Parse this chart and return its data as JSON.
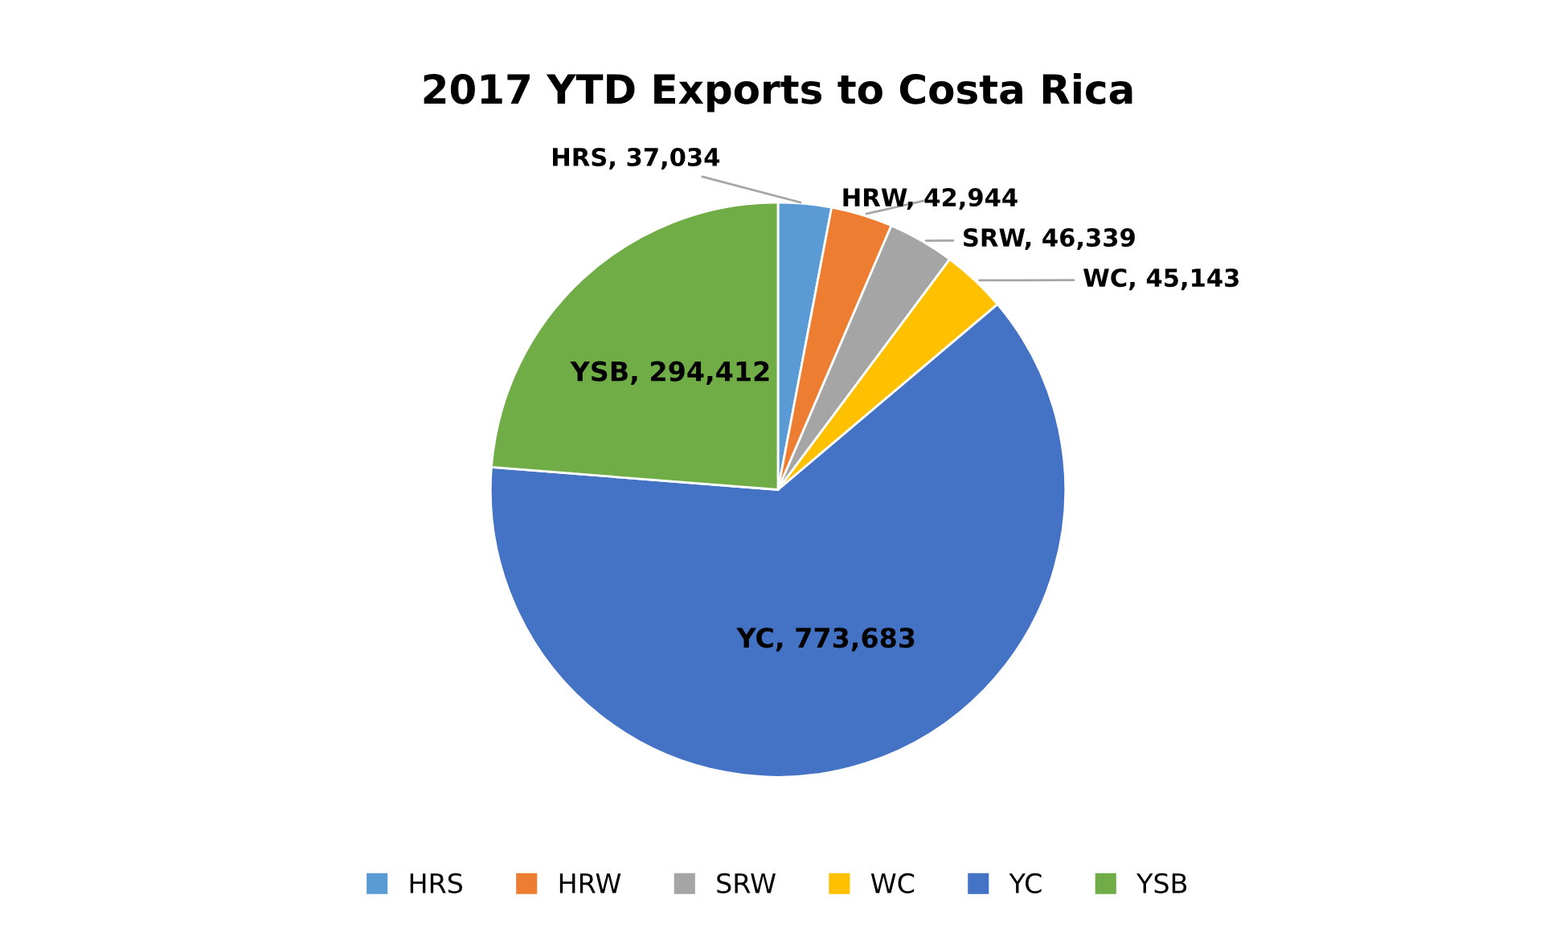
{
  "chart_data": {
    "type": "pie",
    "title": "2017 YTD Exports to Costa Rica",
    "categories": [
      "HRS",
      "HRW",
      "SRW",
      "WC",
      "YC",
      "YSB"
    ],
    "values": [
      37034,
      42944,
      46339,
      45143,
      773683,
      294412
    ],
    "colors": [
      "#5b9bd5",
      "#ed7d31",
      "#a5a5a5",
      "#ffc000",
      "#4472c4",
      "#70ad47"
    ],
    "value_labels": [
      "HRS, 37,034",
      "HRW, 42,944",
      "SRW, 46,339",
      "WC, 45,143",
      "YC, 773,683",
      "YSB, 294,412"
    ],
    "legend": "bottom"
  }
}
